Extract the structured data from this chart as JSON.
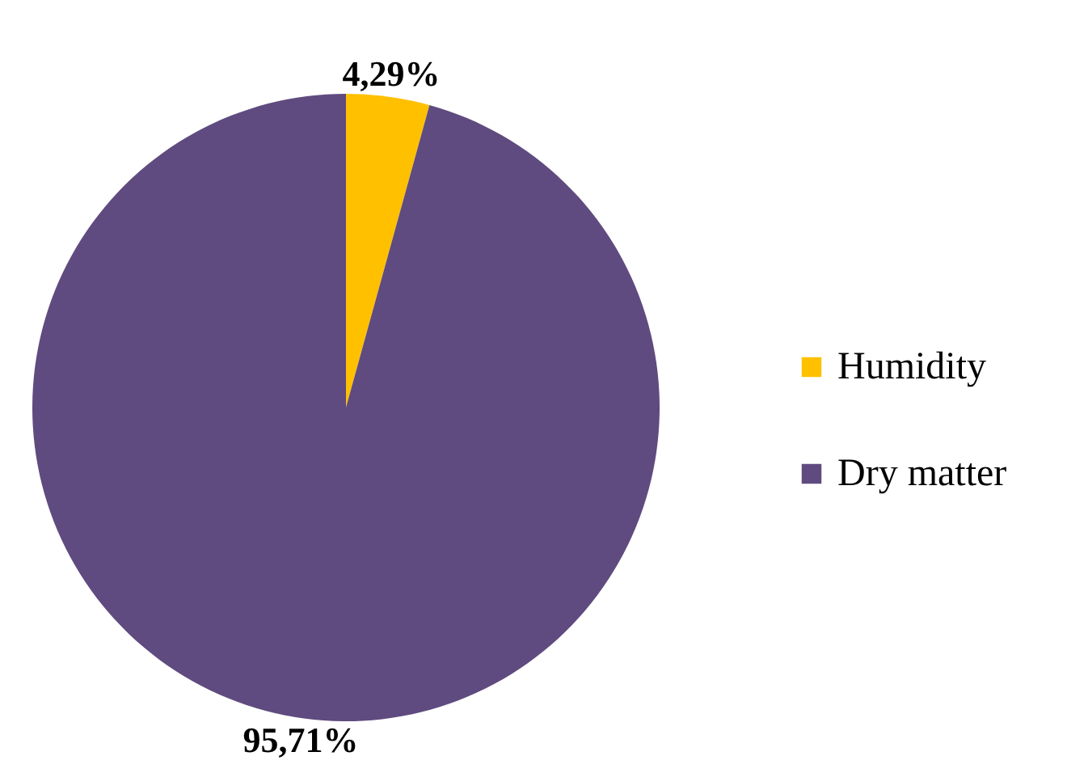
{
  "chart_data": {
    "type": "pie",
    "categories": [
      "Humidity",
      "Dry matter"
    ],
    "values": [
      4.29,
      95.71
    ],
    "colors": [
      "#ffc000",
      "#5f4b7f"
    ],
    "value_labels": [
      "4,29%",
      "95,71%"
    ],
    "legend": "right"
  }
}
